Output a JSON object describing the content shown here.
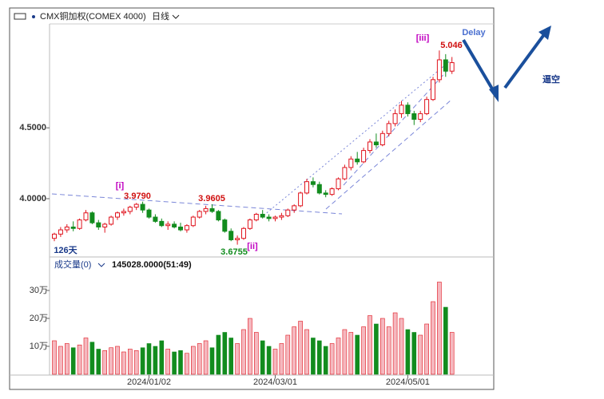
{
  "chart_data": {
    "type": "candlestick",
    "title": "CMX铜加权(COMEX 4000)",
    "period": "日线",
    "categories": [
      null,
      null,
      null,
      null,
      null,
      null,
      null,
      null,
      null,
      null,
      null,
      null,
      null,
      null,
      null,
      "2024/01/02",
      null,
      null,
      null,
      null,
      null,
      null,
      null,
      null,
      null,
      null,
      null,
      null,
      null,
      null,
      null,
      null,
      null,
      null,
      null,
      "2024/03/01",
      null,
      null,
      null,
      null,
      null,
      null,
      null,
      null,
      null,
      null,
      null,
      null,
      null,
      null,
      null,
      null,
      null,
      null,
      null,
      null,
      "2024/05/01",
      null,
      null,
      null,
      null,
      null,
      null,
      null
    ],
    "open": [
      3.72,
      3.75,
      3.78,
      3.8,
      3.79,
      3.85,
      3.9,
      3.83,
      3.8,
      3.82,
      3.87,
      3.9,
      3.91,
      3.94,
      3.96,
      3.92,
      3.87,
      3.84,
      3.81,
      3.82,
      3.8,
      3.78,
      3.81,
      3.87,
      3.91,
      3.93,
      3.91,
      3.85,
      3.77,
      3.71,
      3.72,
      3.79,
      3.85,
      3.89,
      3.87,
      3.86,
      3.87,
      3.88,
      3.92,
      3.95,
      4.04,
      4.12,
      4.1,
      4.04,
      4.03,
      4.07,
      4.14,
      4.22,
      4.28,
      4.26,
      4.34,
      4.4,
      4.38,
      4.46,
      4.53,
      4.6,
      4.66,
      4.6,
      4.56,
      4.6,
      4.7,
      4.84,
      4.98,
      4.9
    ],
    "high": [
      3.76,
      3.8,
      3.82,
      3.84,
      3.86,
      3.92,
      3.91,
      3.85,
      3.83,
      3.88,
      3.91,
      3.93,
      3.95,
      3.97,
      3.979,
      3.93,
      3.89,
      3.86,
      3.84,
      3.84,
      3.83,
      3.82,
      3.88,
      3.92,
      3.95,
      3.9605,
      3.92,
      3.86,
      3.79,
      3.74,
      3.8,
      3.86,
      3.9,
      3.92,
      3.89,
      3.88,
      3.9,
      3.93,
      3.96,
      4.05,
      4.14,
      4.15,
      4.12,
      4.06,
      4.08,
      4.15,
      4.24,
      4.3,
      4.33,
      4.36,
      4.42,
      4.46,
      4.48,
      4.55,
      4.63,
      4.69,
      4.68,
      4.62,
      4.62,
      4.72,
      4.86,
      5.046,
      5.02,
      5.0
    ],
    "low": [
      3.7,
      3.73,
      3.76,
      3.77,
      3.78,
      3.84,
      3.82,
      3.78,
      3.76,
      3.81,
      3.85,
      3.88,
      3.89,
      3.92,
      3.9,
      3.86,
      3.83,
      3.8,
      3.78,
      3.79,
      3.77,
      3.76,
      3.8,
      3.86,
      3.89,
      3.9,
      3.84,
      3.76,
      3.7,
      3.6755,
      3.71,
      3.78,
      3.84,
      3.86,
      3.84,
      3.84,
      3.85,
      3.87,
      3.9,
      3.94,
      4.03,
      4.08,
      4.03,
      4.01,
      4.02,
      4.06,
      4.13,
      4.2,
      4.24,
      4.25,
      4.32,
      4.36,
      4.37,
      4.44,
      4.51,
      4.57,
      4.58,
      4.52,
      4.54,
      4.59,
      4.69,
      4.82,
      4.86,
      4.88
    ],
    "close": [
      3.75,
      3.78,
      3.8,
      3.79,
      3.85,
      3.9,
      3.83,
      3.8,
      3.82,
      3.87,
      3.9,
      3.91,
      3.94,
      3.96,
      3.92,
      3.87,
      3.84,
      3.81,
      3.82,
      3.8,
      3.78,
      3.81,
      3.87,
      3.91,
      3.93,
      3.91,
      3.85,
      3.77,
      3.71,
      3.72,
      3.79,
      3.85,
      3.89,
      3.87,
      3.86,
      3.87,
      3.88,
      3.92,
      3.95,
      4.04,
      4.12,
      4.1,
      4.04,
      4.03,
      4.07,
      4.14,
      4.22,
      4.28,
      4.26,
      4.34,
      4.4,
      4.38,
      4.46,
      4.53,
      4.6,
      4.66,
      4.6,
      4.56,
      4.6,
      4.7,
      4.84,
      4.98,
      4.9,
      4.96
    ],
    "ylim": [
      3.6,
      5.222
    ],
    "yticks": [
      {
        "value": 4,
        "label": "4.0000"
      },
      {
        "value": 4.5,
        "label": "4.5000"
      }
    ],
    "up_color": "#e0141e",
    "down_color": "#128c1e",
    "annotations": [
      "[i]",
      "3.9790",
      "3.9605",
      "3.6755",
      "[ii]",
      "[iii]",
      "5.046",
      "126天",
      "Delay",
      "逼空"
    ],
    "volume": {
      "label": "成交量(0)",
      "readout": "145028.0000(51:49)",
      "values": [
        120000,
        100000,
        110000,
        95000,
        105000,
        130000,
        115000,
        90000,
        85000,
        95000,
        100000,
        80000,
        90000,
        85000,
        95000,
        110000,
        100000,
        120000,
        90000,
        80000,
        85000,
        75000,
        100000,
        110000,
        120000,
        95000,
        140000,
        150000,
        130000,
        110000,
        160000,
        200000,
        150000,
        120000,
        100000,
        90000,
        110000,
        140000,
        170000,
        190000,
        160000,
        130000,
        120000,
        100000,
        110000,
        130000,
        160000,
        150000,
        140000,
        170000,
        210000,
        180000,
        200000,
        170000,
        220000,
        200000,
        160000,
        150000,
        140000,
        180000,
        260000,
        330000,
        240000,
        150000
      ],
      "ylim": [
        0,
        370000
      ],
      "yticks": [
        {
          "value": 100000,
          "label": "10万"
        },
        {
          "value": 200000,
          "label": "20万"
        },
        {
          "value": 300000,
          "label": "30万"
        }
      ]
    }
  }
}
